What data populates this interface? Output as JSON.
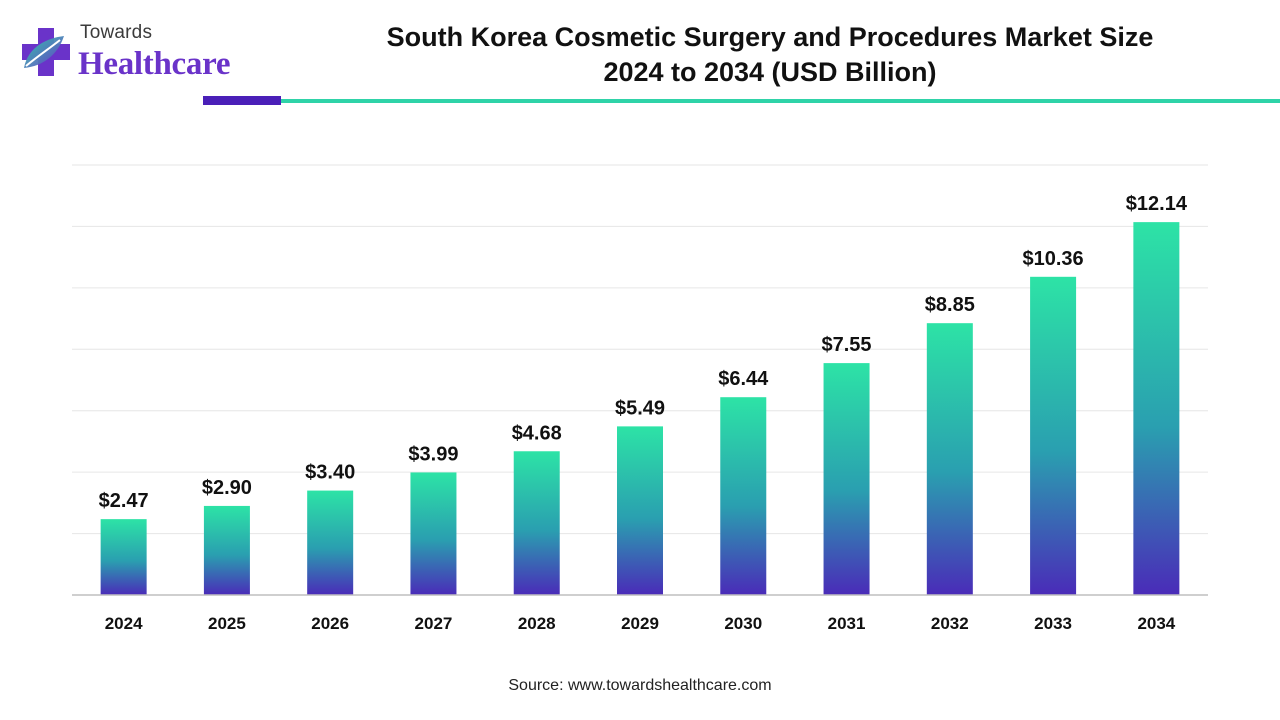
{
  "header": {
    "title_line1": "South Korea Cosmetic Surgery and Procedures Market Size",
    "title_line2": "2024 to 2034 (USD Billion)"
  },
  "logo": {
    "line1": "Towards",
    "line2": "Healthcare",
    "icon": "medical-cross-leaf-icon"
  },
  "footer": {
    "source": "Source: www.towardshealthcare.com"
  },
  "colors": {
    "bar_top": "#2de3a6",
    "bar_bottom": "#4a2bb8",
    "accent_purple": "#4a1fb8",
    "accent_teal": "#2fd3a8"
  },
  "chart_data": {
    "type": "bar",
    "title": "South Korea Cosmetic Surgery and Procedures Market Size 2024 to 2034 (USD Billion)",
    "categories": [
      "2024",
      "2025",
      "2026",
      "2027",
      "2028",
      "2029",
      "2030",
      "2031",
      "2032",
      "2033",
      "2034"
    ],
    "values": [
      2.47,
      2.9,
      3.4,
      3.99,
      4.68,
      5.49,
      6.44,
      7.55,
      8.85,
      10.36,
      12.14
    ],
    "value_labels": [
      "$2.47",
      "$2.90",
      "$3.40",
      "$3.99",
      "$4.68",
      "$5.49",
      "$6.44",
      "$7.55",
      "$8.85",
      "$10.36",
      "$12.14"
    ],
    "xlabel": "",
    "ylabel": "",
    "ylim": [
      0,
      14
    ],
    "grid": true,
    "legend": "none"
  }
}
